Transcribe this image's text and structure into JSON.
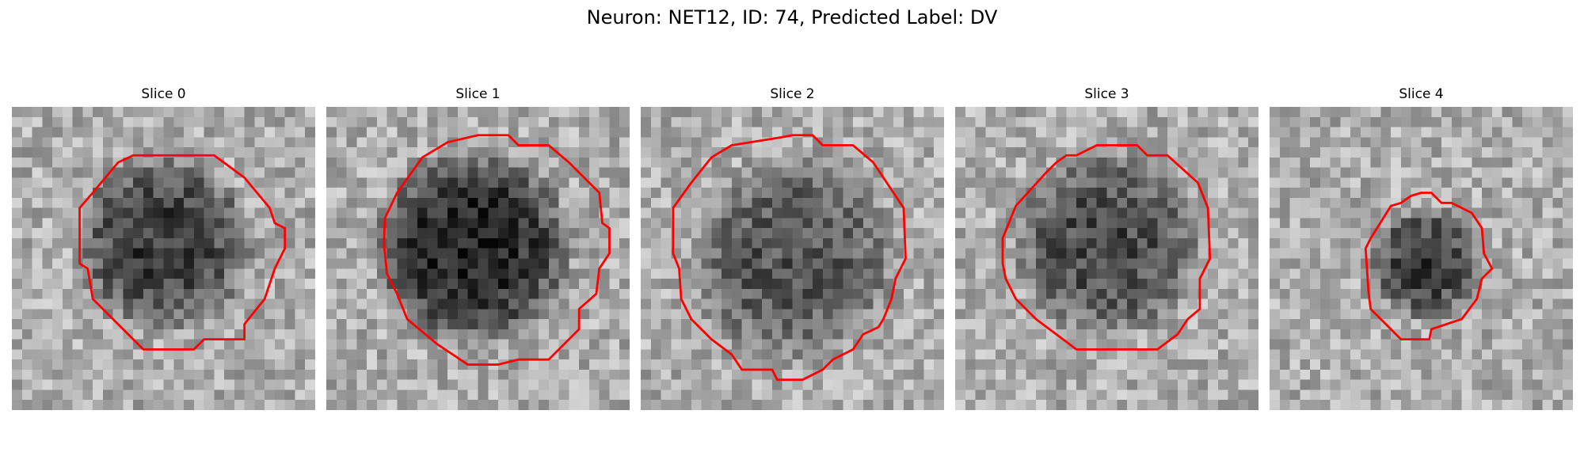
{
  "figure": {
    "title": "Neuron: NET12, ID: 74, Predicted Label: DV"
  },
  "panels": [
    {
      "title": "Slice 0"
    },
    {
      "title": "Slice 1"
    },
    {
      "title": "Slice 2"
    },
    {
      "title": "Slice 3"
    },
    {
      "title": "Slice 4"
    }
  ],
  "colors": {
    "contour": "#ff0000",
    "background": "#ffffff",
    "colormap": "grayscale"
  }
}
